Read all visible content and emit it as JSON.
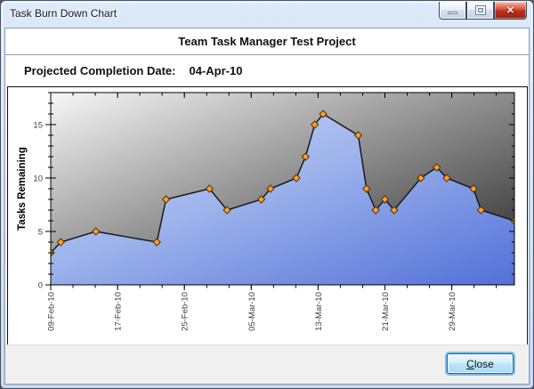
{
  "window": {
    "title": "Task Burn Down Chart",
    "controls": [
      {
        "name": "minimize",
        "glyph": "–"
      },
      {
        "name": "maximize",
        "glyph": "▢"
      },
      {
        "name": "close",
        "glyph": "✕"
      }
    ]
  },
  "header": {
    "project_title": "Team Task Manager Test Project",
    "completion_label": "Projected Completion Date:",
    "completion_value": "04-Apr-10"
  },
  "footer": {
    "close_accel": "C",
    "close_rest": "lose"
  },
  "chart_data": {
    "type": "area",
    "ylabel": "Tasks Remaining",
    "ylim": [
      0,
      18
    ],
    "y_major_ticks": [
      0,
      5,
      10,
      15
    ],
    "y_minor_step": 1,
    "xlim_days": [
      0,
      55.5
    ],
    "x_major_tick_days": [
      0,
      8,
      16,
      24,
      32,
      40,
      48
    ],
    "x_tick_labels": [
      "09-Feb-10",
      "17-Feb-10",
      "25-Feb-10",
      "05-Mar-10",
      "13-Mar-10",
      "21-Mar-10",
      "29-Mar-10"
    ],
    "x_minor_step_days": 2.6667,
    "grid": false,
    "legend": "none",
    "points": [
      {
        "day": 0.0,
        "tasks": 3
      },
      {
        "day": 1.2,
        "tasks": 4
      },
      {
        "day": 5.4,
        "tasks": 5
      },
      {
        "day": 12.7,
        "tasks": 4
      },
      {
        "day": 13.8,
        "tasks": 8
      },
      {
        "day": 19.0,
        "tasks": 9
      },
      {
        "day": 21.1,
        "tasks": 7
      },
      {
        "day": 25.2,
        "tasks": 8
      },
      {
        "day": 26.3,
        "tasks": 9
      },
      {
        "day": 29.4,
        "tasks": 10
      },
      {
        "day": 30.5,
        "tasks": 12
      },
      {
        "day": 31.6,
        "tasks": 15
      },
      {
        "day": 32.6,
        "tasks": 16
      },
      {
        "day": 36.8,
        "tasks": 14
      },
      {
        "day": 37.8,
        "tasks": 9
      },
      {
        "day": 38.9,
        "tasks": 7
      },
      {
        "day": 40.0,
        "tasks": 8
      },
      {
        "day": 41.1,
        "tasks": 7
      },
      {
        "day": 44.3,
        "tasks": 10
      },
      {
        "day": 46.2,
        "tasks": 11
      },
      {
        "day": 47.4,
        "tasks": 10
      },
      {
        "day": 50.6,
        "tasks": 9
      },
      {
        "day": 51.5,
        "tasks": 7
      },
      {
        "day": 55.5,
        "tasks": 6
      }
    ],
    "colors": {
      "plot_bg_from": "#f7f7f7",
      "plot_bg_mid": "#8c8c8c",
      "plot_bg_to": "#242424",
      "area_from": "#cfdaf7",
      "area_mid": "#9db3ec",
      "area_to": "#5270d8",
      "line": "#1a1a1a",
      "marker_fill": "#FF9D2E",
      "marker_stroke": "#503405",
      "tick": "#000000",
      "tick_label": "#3d3d3d",
      "axis_title": "#000000"
    }
  }
}
